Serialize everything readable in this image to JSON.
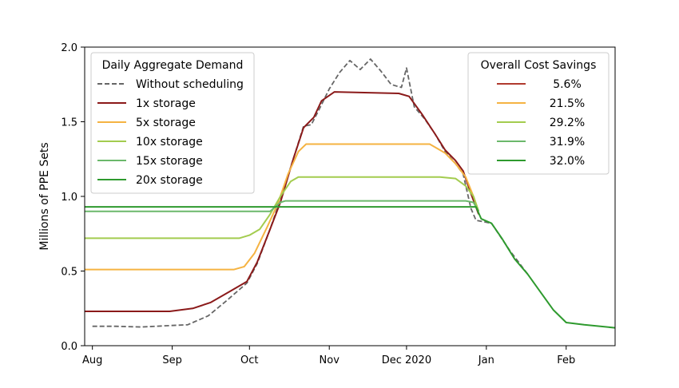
{
  "chart_data": {
    "type": "line",
    "title": "",
    "xlabel": "",
    "ylabel": "Millions of PPE Sets",
    "ylim": [
      0,
      2.0
    ],
    "xlim": [
      "2020-07-29",
      "2021-02-20"
    ],
    "grid": false,
    "x_ticks": [
      {
        "date": "2020-08-01",
        "label": "Aug"
      },
      {
        "date": "2020-09-01",
        "label": "Sep"
      },
      {
        "date": "2020-10-01",
        "label": "Oct"
      },
      {
        "date": "2020-11-01",
        "label": "Nov"
      },
      {
        "date": "2020-12-01",
        "label": "Dec 2020"
      },
      {
        "date": "2021-01-01",
        "label": "Jan"
      },
      {
        "date": "2021-02-01",
        "label": "Feb"
      }
    ],
    "y_ticks": [
      {
        "value": 0.0,
        "label": "0.0"
      },
      {
        "value": 0.5,
        "label": "0.5"
      },
      {
        "value": 1.0,
        "label": "1.0"
      },
      {
        "value": 1.5,
        "label": "1.5"
      },
      {
        "value": 2.0,
        "label": "2.0"
      }
    ],
    "legends": [
      {
        "title": "Daily Aggregate Demand",
        "position": "top-left",
        "entries": [
          {
            "label": "Without scheduling",
            "color": "#666666",
            "dashed": true
          },
          {
            "label": "1x storage",
            "color": "#8b1a1a"
          },
          {
            "label": "5x storage",
            "color": "#f5b342"
          },
          {
            "label": "10x storage",
            "color": "#a3cc4f"
          },
          {
            "label": "15x storage",
            "color": "#6bb86b"
          },
          {
            "label": "20x storage",
            "color": "#2e9a2e"
          }
        ]
      },
      {
        "title": "Overall Cost Savings",
        "position": "top-right",
        "entries": [
          {
            "label": "5.6%",
            "color": "#b03a2e"
          },
          {
            "label": "21.5%",
            "color": "#f5b342"
          },
          {
            "label": "29.2%",
            "color": "#a3cc4f"
          },
          {
            "label": "31.9%",
            "color": "#6bb86b"
          },
          {
            "label": "32.0%",
            "color": "#2e9a2e"
          }
        ]
      }
    ],
    "series": [
      {
        "name": "Without scheduling",
        "color": "#666666",
        "dashed": true,
        "points": [
          [
            "2020-08-01",
            0.13
          ],
          [
            "2020-08-10",
            0.13
          ],
          [
            "2020-08-20",
            0.125
          ],
          [
            "2020-08-31",
            0.135
          ],
          [
            "2020-09-07",
            0.14
          ],
          [
            "2020-09-15",
            0.2
          ],
          [
            "2020-09-22",
            0.3
          ],
          [
            "2020-09-30",
            0.42
          ],
          [
            "2020-10-04",
            0.55
          ],
          [
            "2020-10-09",
            0.78
          ],
          [
            "2020-10-13",
            0.98
          ],
          [
            "2020-10-18",
            1.25
          ],
          [
            "2020-10-22",
            1.47
          ],
          [
            "2020-10-25",
            1.48
          ],
          [
            "2020-10-28",
            1.58
          ],
          [
            "2020-11-01",
            1.72
          ],
          [
            "2020-11-05",
            1.83
          ],
          [
            "2020-11-09",
            1.91
          ],
          [
            "2020-11-13",
            1.85
          ],
          [
            "2020-11-17",
            1.92
          ],
          [
            "2020-11-21",
            1.84
          ],
          [
            "2020-11-25",
            1.75
          ],
          [
            "2020-11-29",
            1.73
          ],
          [
            "2020-12-01",
            1.86
          ],
          [
            "2020-12-04",
            1.6
          ],
          [
            "2020-12-08",
            1.52
          ],
          [
            "2020-12-12",
            1.42
          ],
          [
            "2020-12-16",
            1.3
          ],
          [
            "2020-12-20",
            1.22
          ],
          [
            "2020-12-23",
            1.15
          ],
          [
            "2020-12-26",
            0.92
          ],
          [
            "2020-12-28",
            0.84
          ],
          [
            "2021-01-03",
            0.82
          ],
          [
            "2021-01-10",
            0.64
          ],
          [
            "2021-01-17",
            0.48
          ]
        ]
      },
      {
        "name": "1x storage",
        "color": "#8b1a1a",
        "points": [
          [
            "2020-07-29",
            0.23
          ],
          [
            "2020-08-31",
            0.23
          ],
          [
            "2020-09-09",
            0.25
          ],
          [
            "2020-09-16",
            0.29
          ],
          [
            "2020-09-23",
            0.36
          ],
          [
            "2020-09-30",
            0.43
          ],
          [
            "2020-10-04",
            0.56
          ],
          [
            "2020-10-09",
            0.78
          ],
          [
            "2020-10-13",
            0.96
          ],
          [
            "2020-10-18",
            1.25
          ],
          [
            "2020-10-22",
            1.46
          ],
          [
            "2020-10-26",
            1.53
          ],
          [
            "2020-10-29",
            1.64
          ],
          [
            "2020-11-03",
            1.7
          ],
          [
            "2020-11-28",
            1.69
          ],
          [
            "2020-12-02",
            1.67
          ],
          [
            "2020-12-07",
            1.55
          ],
          [
            "2020-12-12",
            1.42
          ],
          [
            "2020-12-16",
            1.31
          ],
          [
            "2020-12-20",
            1.24
          ],
          [
            "2020-12-23",
            1.17
          ],
          [
            "2020-12-26",
            1.02
          ],
          [
            "2020-12-29",
            0.88
          ]
        ]
      },
      {
        "name": "5x storage",
        "color": "#f5b342",
        "points": [
          [
            "2020-07-29",
            0.51
          ],
          [
            "2020-09-25",
            0.51
          ],
          [
            "2020-09-29",
            0.53
          ],
          [
            "2020-10-03",
            0.62
          ],
          [
            "2020-10-08",
            0.8
          ],
          [
            "2020-10-12",
            0.95
          ],
          [
            "2020-10-16",
            1.15
          ],
          [
            "2020-10-20",
            1.3
          ],
          [
            "2020-10-23",
            1.35
          ],
          [
            "2020-12-10",
            1.35
          ],
          [
            "2020-12-12",
            1.33
          ],
          [
            "2020-12-16",
            1.29
          ],
          [
            "2020-12-20",
            1.22
          ],
          [
            "2020-12-24",
            1.13
          ],
          [
            "2020-12-27",
            1.0
          ],
          [
            "2020-12-29",
            0.9
          ]
        ]
      },
      {
        "name": "10x storage",
        "color": "#a3cc4f",
        "points": [
          [
            "2020-07-29",
            0.72
          ],
          [
            "2020-09-27",
            0.72
          ],
          [
            "2020-10-01",
            0.74
          ],
          [
            "2020-10-05",
            0.78
          ],
          [
            "2020-10-09",
            0.88
          ],
          [
            "2020-10-13",
            1.0
          ],
          [
            "2020-10-17",
            1.1
          ],
          [
            "2020-10-20",
            1.13
          ],
          [
            "2020-12-14",
            1.13
          ],
          [
            "2020-12-20",
            1.12
          ],
          [
            "2020-12-24",
            1.07
          ],
          [
            "2020-12-27",
            1.0
          ],
          [
            "2020-12-29",
            0.9
          ]
        ]
      },
      {
        "name": "15x storage",
        "color": "#6bb86b",
        "points": [
          [
            "2020-07-29",
            0.9
          ],
          [
            "2020-10-09",
            0.9
          ],
          [
            "2020-10-13",
            0.96
          ],
          [
            "2020-10-15",
            0.97
          ],
          [
            "2020-12-24",
            0.97
          ],
          [
            "2020-12-27",
            0.96
          ],
          [
            "2020-12-29",
            0.9
          ]
        ]
      },
      {
        "name": "20x storage",
        "color": "#2e9a2e",
        "points": [
          [
            "2020-07-29",
            0.93
          ],
          [
            "2020-12-28",
            0.93
          ],
          [
            "2020-12-30",
            0.85
          ],
          [
            "2021-01-03",
            0.82
          ],
          [
            "2021-01-07",
            0.72
          ],
          [
            "2021-01-12",
            0.58
          ],
          [
            "2021-01-17",
            0.48
          ],
          [
            "2021-01-22",
            0.36
          ],
          [
            "2021-01-27",
            0.24
          ],
          [
            "2021-02-01",
            0.155
          ],
          [
            "2021-02-08",
            0.14
          ],
          [
            "2021-02-20",
            0.12
          ]
        ]
      }
    ]
  }
}
